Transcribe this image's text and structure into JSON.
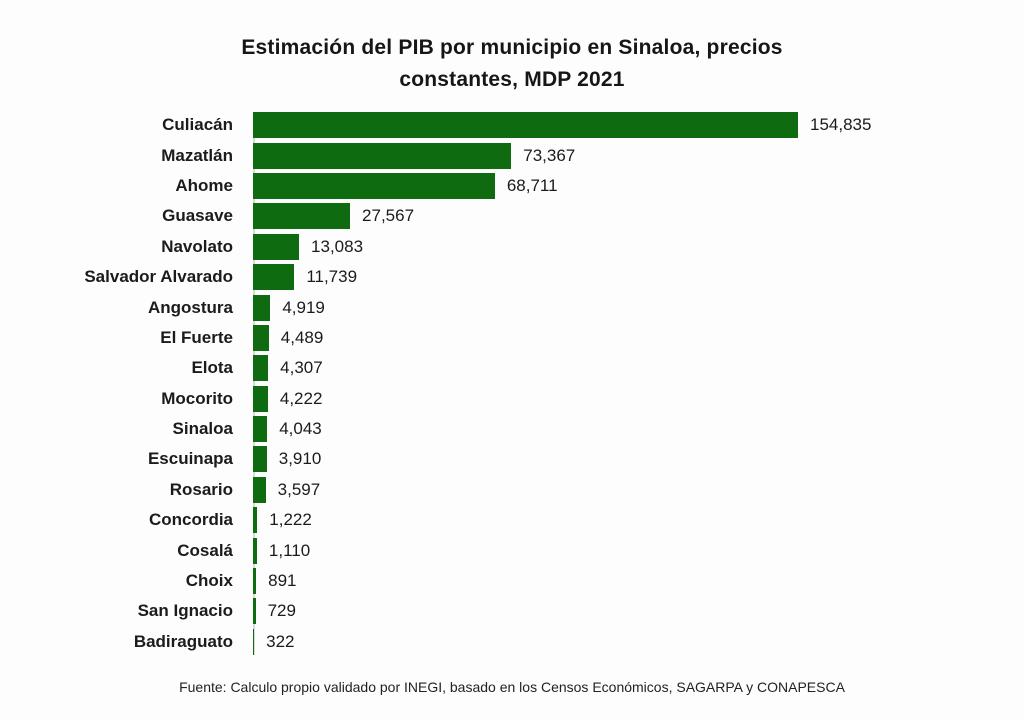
{
  "page": {
    "background": "#fdfdfd"
  },
  "chart_data": {
    "type": "bar",
    "orientation": "horizontal",
    "title": "Estimación del PIB por municipio en Sinaloa, precios constantes, MDP 2021",
    "title_lines": [
      "Estimación del PIB por municipio en Sinaloa, precios",
      "constantes, MDP 2021"
    ],
    "categories": [
      "Culiacán",
      "Mazatlán",
      "Ahome",
      "Guasave",
      "Navolato",
      "Salvador Alvarado",
      "Angostura",
      "El Fuerte",
      "Elota",
      "Mocorito",
      "Sinaloa",
      "Escuinapa",
      "Rosario",
      "Concordia",
      "Cosalá",
      "Choix",
      "San Ignacio",
      "Badiraguato"
    ],
    "values": [
      154835,
      73367,
      68711,
      27567,
      13083,
      11739,
      4919,
      4489,
      4307,
      4222,
      4043,
      3910,
      3597,
      1222,
      1110,
      891,
      729,
      322
    ],
    "value_labels": [
      "154,835",
      "73,367",
      "68,711",
      "27,567",
      "13,083",
      "11,739",
      "4,919",
      "4,489",
      "4,307",
      "4,222",
      "4,043",
      "3,910",
      "3,597",
      "1,222",
      "1,110",
      "891",
      "729",
      "322"
    ],
    "xlabel": "",
    "ylabel": "",
    "xlim": [
      0,
      154835
    ],
    "grid": false,
    "legend": false,
    "bar_color": "#0e6b10",
    "axis_line_color": "#d9d9d9"
  },
  "footer": {
    "source": "Fuente: Calculo propio validado por INEGI, basado en los Censos Económicos, SAGARPA y CONAPESCA"
  }
}
